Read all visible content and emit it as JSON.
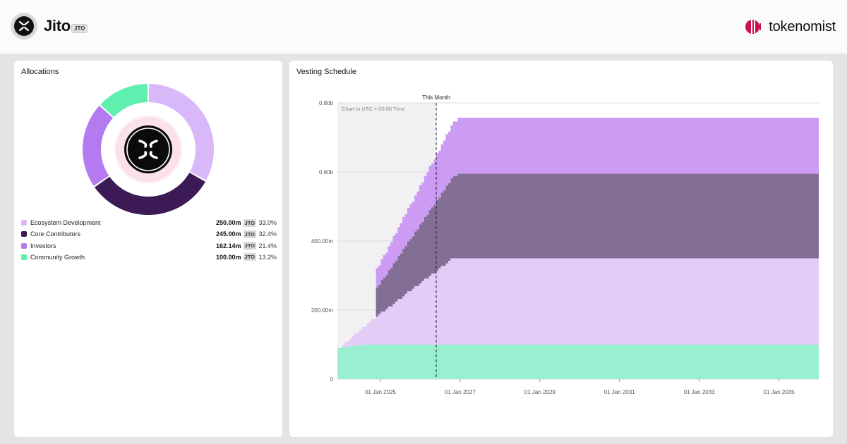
{
  "header": {
    "token_name": "Jito",
    "token_symbol": "JTO",
    "brand_name": "tokenomist"
  },
  "allocations": {
    "title": "Allocations",
    "items": [
      {
        "label": "Ecosystem Development",
        "amount": "250.00m",
        "unit": "JTO",
        "percent": "33.0%",
        "value": 33.0,
        "color": "#d9b8fa"
      },
      {
        "label": "Core Contributors",
        "amount": "245.00m",
        "unit": "JTO",
        "percent": "32.4%",
        "value": 32.4,
        "color": "#3b1a55"
      },
      {
        "label": "Investors",
        "amount": "162.14m",
        "unit": "JTO",
        "percent": "21.4%",
        "value": 21.4,
        "color": "#b57af0"
      },
      {
        "label": "Community Growth",
        "amount": "100.00m",
        "unit": "JTO",
        "percent": "13.2%",
        "value": 13.2,
        "color": "#5ff0b0"
      }
    ]
  },
  "vesting": {
    "title": "Vesting Schedule",
    "marker_label": "This Month",
    "note": "Chart in UTC + 00:00 Time"
  },
  "chart_data": [
    {
      "type": "pie",
      "title": "Allocations",
      "categories": [
        "Ecosystem Development",
        "Core Contributors",
        "Investors",
        "Community Growth"
      ],
      "values": [
        33.0,
        32.4,
        21.4,
        13.2
      ]
    },
    {
      "type": "area",
      "title": "Vesting Schedule",
      "stacked": true,
      "x_unit": "year",
      "x_domain": [
        2023.92,
        2036.0
      ],
      "x_ticks": [
        {
          "x": 2025,
          "label": "01 Jan 2025"
        },
        {
          "x": 2027,
          "label": "01 Jan 2027"
        },
        {
          "x": 2029,
          "label": "01 Jan 2029"
        },
        {
          "x": 2031,
          "label": "01 Jan 2031"
        },
        {
          "x": 2033,
          "label": "01 Jan 2033"
        },
        {
          "x": 2035,
          "label": "01 Jan 2035"
        }
      ],
      "y_ticks": [
        {
          "y": 0,
          "label": "0"
        },
        {
          "y": 200,
          "label": "200.00m"
        },
        {
          "y": 400,
          "label": "400.00m"
        },
        {
          "y": 600,
          "label": "0.60b"
        },
        {
          "y": 800,
          "label": "0.80b"
        }
      ],
      "ylim": [
        0,
        800
      ],
      "marker_x": 2026.4,
      "x_end": 2036.0,
      "series": [
        {
          "name": "Community Growth",
          "color": "#99f0d0",
          "points": [
            [
              2023.92,
              90
            ],
            [
              2024.55,
              100
            ],
            [
              2036.0,
              100
            ]
          ]
        },
        {
          "name": "Ecosystem Development",
          "color": "#e3cdf7",
          "start": 2023.92,
          "end": 2026.75,
          "from": 0,
          "to": 250,
          "step": "monthly"
        },
        {
          "name": "Core Contributors",
          "color": "#836f96",
          "start": 2024.88,
          "end": 2026.88,
          "from": 85,
          "to": 245,
          "step": "monthly"
        },
        {
          "name": "Investors",
          "color": "#cc9cf5",
          "start": 2024.88,
          "end": 2026.88,
          "from": 56,
          "to": 162.14,
          "step": "monthly"
        }
      ]
    }
  ]
}
